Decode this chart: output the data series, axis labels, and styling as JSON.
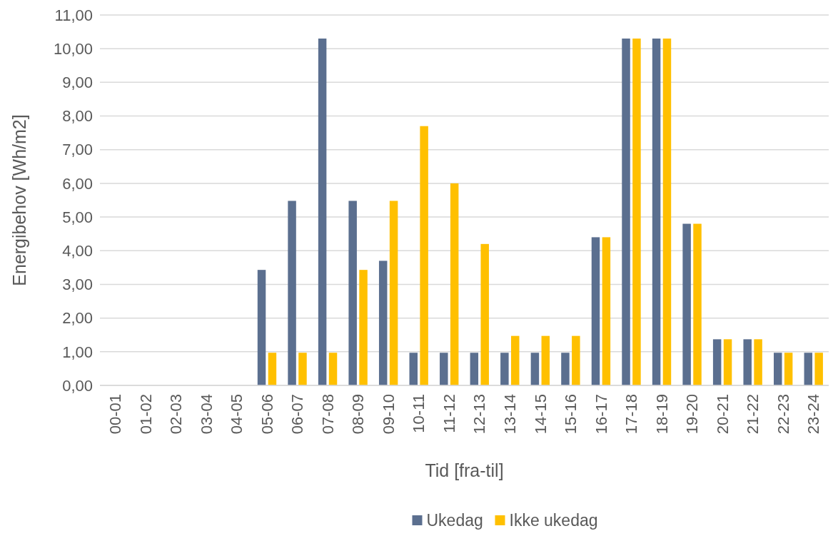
{
  "chart_data": {
    "type": "bar",
    "xlabel": "Tid [fra-til]",
    "ylabel": "Energibehov [Wh/m2]",
    "categories": [
      "00-01",
      "01-02",
      "02-03",
      "03-04",
      "04-05",
      "05-06",
      "06-07",
      "07-08",
      "08-09",
      "09-10",
      "10-11",
      "11-12",
      "12-13",
      "13-14",
      "14-15",
      "15-16",
      "16-17",
      "17-18",
      "18-19",
      "19-20",
      "20-21",
      "21-22",
      "22-23",
      "23-24"
    ],
    "series": [
      {
        "name": "Ukedag",
        "color": "#5b6f8f",
        "values": [
          0,
          0,
          0,
          0,
          0,
          3.43,
          5.48,
          10.3,
          5.48,
          3.7,
          0.97,
          0.97,
          0.97,
          0.97,
          0.97,
          0.97,
          4.4,
          10.3,
          10.3,
          4.8,
          1.37,
          1.37,
          0.97,
          0.97
        ]
      },
      {
        "name": "Ikke ukedag",
        "color": "#ffc000",
        "values": [
          0,
          0,
          0,
          0,
          0,
          0.97,
          0.97,
          0.97,
          3.43,
          5.48,
          7.7,
          6.0,
          4.2,
          1.47,
          1.47,
          1.47,
          4.4,
          10.3,
          10.3,
          4.8,
          1.37,
          1.37,
          0.97,
          0.97
        ]
      }
    ],
    "ylim": [
      0,
      11
    ],
    "yticks": [
      {
        "value": 0,
        "label": "0,00"
      },
      {
        "value": 1,
        "label": "1,00"
      },
      {
        "value": 2,
        "label": "2,00"
      },
      {
        "value": 3,
        "label": "3,00"
      },
      {
        "value": 4,
        "label": "4,00"
      },
      {
        "value": 5,
        "label": "5,00"
      },
      {
        "value": 6,
        "label": "6,00"
      },
      {
        "value": 7,
        "label": "7,00"
      },
      {
        "value": 8,
        "label": "8,00"
      },
      {
        "value": 9,
        "label": "9,00"
      },
      {
        "value": 10,
        "label": "10,00"
      },
      {
        "value": 11,
        "label": "11,00"
      }
    ],
    "grid": "y",
    "legend": "bottom"
  }
}
